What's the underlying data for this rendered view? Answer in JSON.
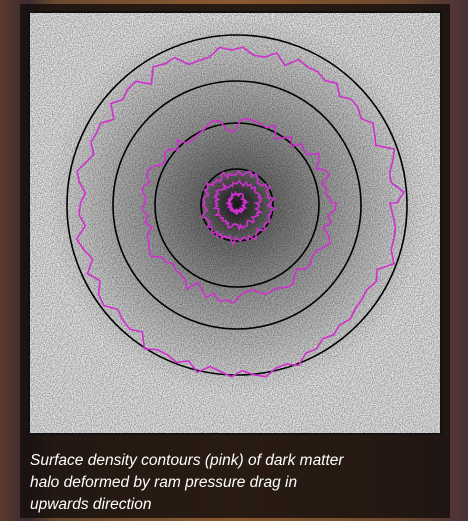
{
  "caption": {
    "lines": [
      "Surface density contours (pink) of dark matter",
      "halo deformed by ram pressure drag in",
      "upwards direction"
    ]
  }
}
